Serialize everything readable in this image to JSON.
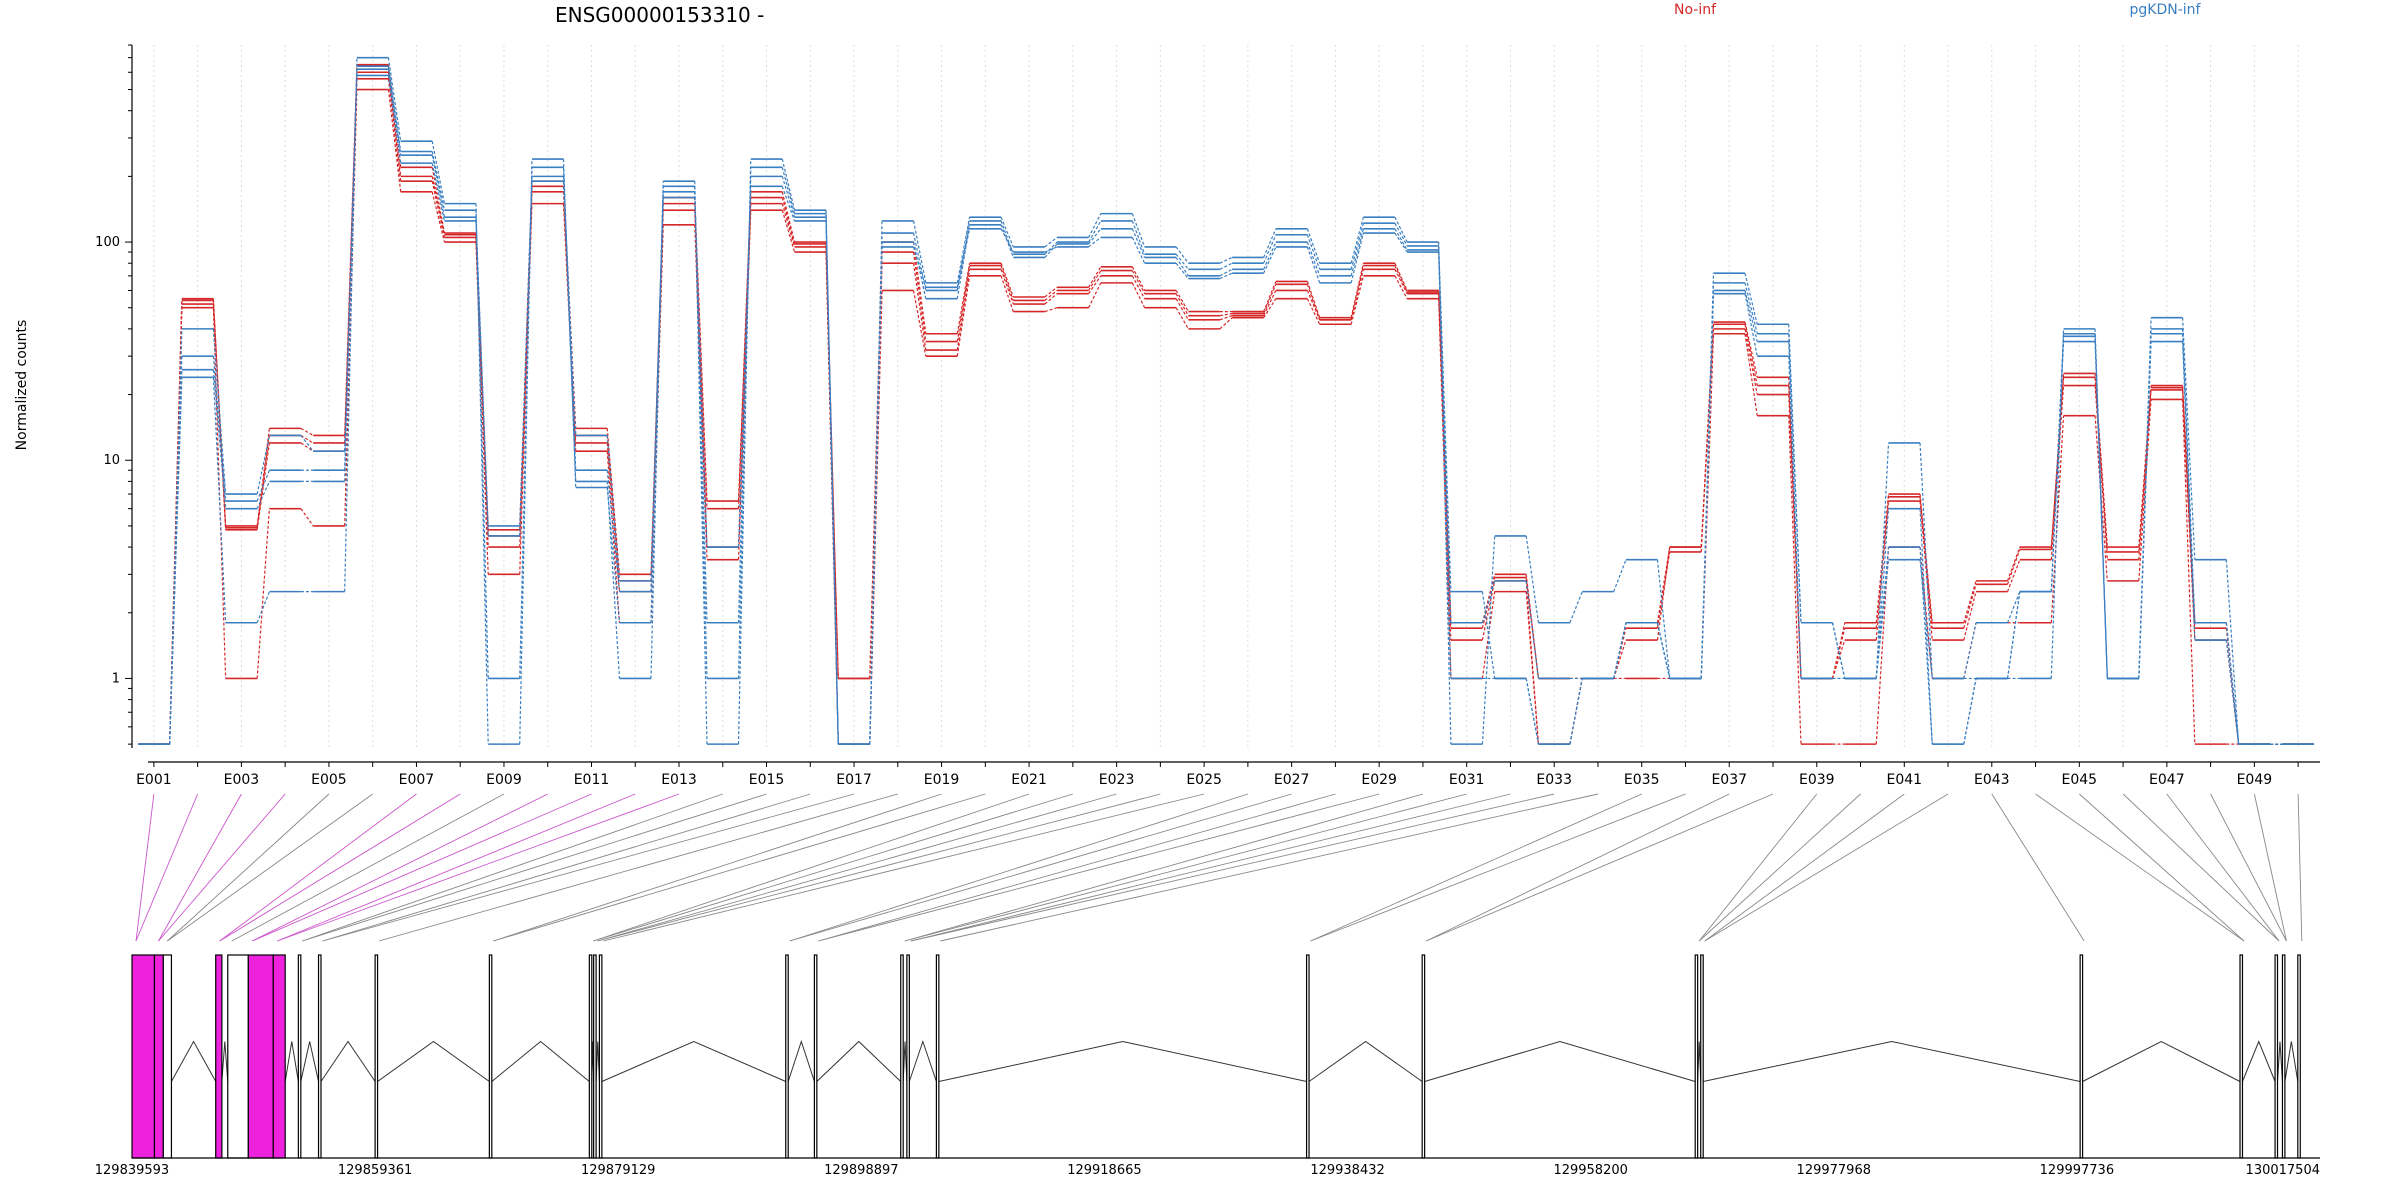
{
  "chart_data": {
    "type": "line",
    "title": "ENSG00000153310 -",
    "ylabel": "Normalized counts",
    "yscale": "log",
    "ylim": [
      0.48,
      800
    ],
    "yticks": [
      {
        "value": 1,
        "label": "1"
      },
      {
        "value": 10,
        "label": "10"
      },
      {
        "value": 100,
        "label": "100"
      }
    ],
    "colors": {
      "No-inf": "#d62728",
      "pgKDN-inf": "#3a7fc1",
      "highlight_exon": "#ee22dd"
    },
    "exon_tick_labels": [
      "E001",
      "E003",
      "E005",
      "E007",
      "E009",
      "E011",
      "E013",
      "E015",
      "E017",
      "E019",
      "E021",
      "E023",
      "E025",
      "E027",
      "E029",
      "E031",
      "E033",
      "E035",
      "E037",
      "E039",
      "E041",
      "E043",
      "E045",
      "E047",
      "E049"
    ],
    "categories": [
      "E001",
      "E002",
      "E003",
      "E004",
      "E005",
      "E006",
      "E007",
      "E008",
      "E009",
      "E010",
      "E011",
      "E012",
      "E013",
      "E014",
      "E015",
      "E016",
      "E017",
      "E018",
      "E019",
      "E020",
      "E021",
      "E022",
      "E023",
      "E024",
      "E025",
      "E026",
      "E027",
      "E028",
      "E029",
      "E030",
      "E031",
      "E032",
      "E033",
      "E034",
      "E035",
      "E036",
      "E037",
      "E038",
      "E039",
      "E040",
      "E041",
      "E042",
      "E043",
      "E044",
      "E045",
      "E046",
      "E047",
      "E048",
      "E049",
      "E050"
    ],
    "series": [
      {
        "name": "No-inf",
        "group": "No-inf",
        "values": [
          0.5,
          55,
          5,
          14,
          13,
          650,
          220,
          110,
          4.8,
          190,
          14,
          3,
          160,
          6.5,
          170,
          100,
          1,
          100,
          38,
          80,
          56,
          62,
          77,
          60,
          48,
          48,
          66,
          45,
          80,
          60,
          1.8,
          3,
          1,
          1,
          1.8,
          4,
          43,
          24,
          1,
          1.8,
          7,
          1.8,
          2.8,
          4,
          25,
          4,
          22,
          1.8,
          0.5,
          0.5
        ]
      },
      {
        "name": "No-inf",
        "group": "No-inf",
        "values": [
          0.5,
          52,
          4.8,
          12,
          11,
          560,
          190,
          105,
          4,
          170,
          12,
          2.5,
          140,
          4,
          150,
          95,
          0.5,
          80,
          32,
          75,
          52,
          58,
          70,
          55,
          44,
          46,
          60,
          44,
          75,
          58,
          1.5,
          2.8,
          0.5,
          1,
          1.5,
          4,
          40,
          20,
          1,
          1.5,
          6.5,
          1.5,
          2.5,
          3.5,
          22,
          3.5,
          21,
          1.5,
          0.5,
          0.5
        ]
      },
      {
        "name": "No-inf",
        "group": "No-inf",
        "values": [
          0.5,
          50,
          1,
          6,
          5,
          500,
          170,
          100,
          3,
          150,
          11,
          1.8,
          120,
          3.5,
          140,
          90,
          0.5,
          60,
          30,
          70,
          48,
          50,
          65,
          50,
          40,
          45,
          55,
          42,
          70,
          55,
          1,
          2.5,
          0.5,
          1,
          1,
          1,
          38,
          16,
          0.5,
          0.5,
          4,
          1,
          1.8,
          1.8,
          16,
          2.8,
          19,
          0.5,
          0.5,
          0.5
        ]
      },
      {
        "name": "No-inf",
        "group": "No-inf",
        "values": [
          0.5,
          54,
          4.9,
          13,
          12,
          600,
          200,
          108,
          4.5,
          180,
          13,
          2.8,
          150,
          6,
          160,
          98,
          1,
          90,
          35,
          78,
          54,
          60,
          74,
          58,
          46,
          47,
          64,
          44,
          78,
          59,
          1.7,
          2.9,
          1,
          1,
          1.7,
          3.8,
          42,
          22,
          1,
          1.7,
          6.8,
          1.7,
          2.7,
          3.9,
          24,
          3.8,
          21.5,
          1.7,
          0.5,
          0.5
        ]
      },
      {
        "name": "pgKDN-inf",
        "group": "pgKDN-inf",
        "values": [
          0.5,
          24,
          1.8,
          2.5,
          2.5,
          700,
          290,
          150,
          0.5,
          240,
          7.5,
          1.8,
          190,
          0.5,
          240,
          140,
          0.5,
          125,
          65,
          130,
          95,
          105,
          135,
          95,
          80,
          85,
          115,
          80,
          130,
          100,
          0.5,
          4.5,
          1.8,
          2.5,
          3.5,
          1,
          72,
          42,
          1.8,
          1,
          12,
          1,
          1,
          1,
          40,
          1,
          45,
          3.5,
          0.5,
          0.5
        ]
      },
      {
        "name": "pgKDN-inf",
        "group": "pgKDN-inf",
        "values": [
          0.5,
          26,
          6,
          8,
          8,
          640,
          260,
          140,
          1,
          220,
          8,
          1,
          180,
          1,
          220,
          135,
          0.5,
          110,
          60,
          125,
          88,
          100,
          125,
          88,
          75,
          80,
          108,
          75,
          122,
          96,
          2.5,
          1,
          0.5,
          1,
          1.8,
          1,
          65,
          38,
          1.8,
          1,
          6,
          0.5,
          1,
          2.5,
          38,
          1,
          40,
          1.8,
          0.5,
          0.5
        ]
      },
      {
        "name": "pgKDN-inf",
        "group": "pgKDN-inf",
        "values": [
          0.5,
          30,
          6.5,
          9,
          9,
          620,
          250,
          130,
          4.5,
          200,
          9,
          2.5,
          170,
          1.8,
          200,
          130,
          0.5,
          100,
          55,
          120,
          85,
          98,
          115,
          85,
          70,
          75,
          100,
          70,
          115,
          92,
          1.8,
          2.8,
          1,
          1,
          1.8,
          1,
          60,
          35,
          1,
          1,
          4,
          0.5,
          1,
          2.5,
          35,
          1,
          38,
          1.8,
          0.5,
          0.5
        ]
      },
      {
        "name": "pgKDN-inf",
        "group": "pgKDN-inf",
        "values": [
          0.5,
          40,
          7,
          13,
          11,
          580,
          230,
          125,
          5,
          190,
          13,
          2.8,
          160,
          4,
          180,
          125,
          0.5,
          95,
          62,
          115,
          90,
          95,
          105,
          80,
          68,
          72,
          95,
          65,
          110,
          90,
          1,
          1,
          0.5,
          1,
          1.8,
          1,
          58,
          30,
          1,
          1,
          3.5,
          1,
          1.8,
          2.5,
          37,
          1,
          35,
          1.5,
          0.5,
          0.5
        ]
      }
    ],
    "gene_model": {
      "start_coordinate": 129839593,
      "end_coordinate": 130017504,
      "coordinate_labels": [
        "129839593",
        "129859361",
        "129879129",
        "129898897",
        "129918665",
        "129938432",
        "129958200",
        "129977968",
        "129997736",
        "130017504"
      ],
      "exon_starts": [
        129839593,
        129841420,
        129842140,
        129846400,
        129847380,
        129849050,
        129851080,
        129853120,
        129854760,
        129859361,
        129868650,
        129876780,
        129877130,
        129877600,
        129892750,
        129895080,
        129902100,
        129902600,
        129905000,
        129935100,
        129944500,
        129966700,
        129967150,
        129998000,
        130011000,
        130013850,
        130014450,
        130015700
      ],
      "exon_ends": [
        129841420,
        129842140,
        129842800,
        129846900,
        129849050,
        129851080,
        129852050,
        129853320,
        129854960,
        129859561,
        129868850,
        129876980,
        129877330,
        129877800,
        129892950,
        129895280,
        129902300,
        129902800,
        129905200,
        129935300,
        129944700,
        129966900,
        129967350,
        129998200,
        130011200,
        130014050,
        130014650,
        130015900
      ],
      "highlighted_exons": [
        0,
        1,
        3,
        5,
        6
      ]
    }
  }
}
